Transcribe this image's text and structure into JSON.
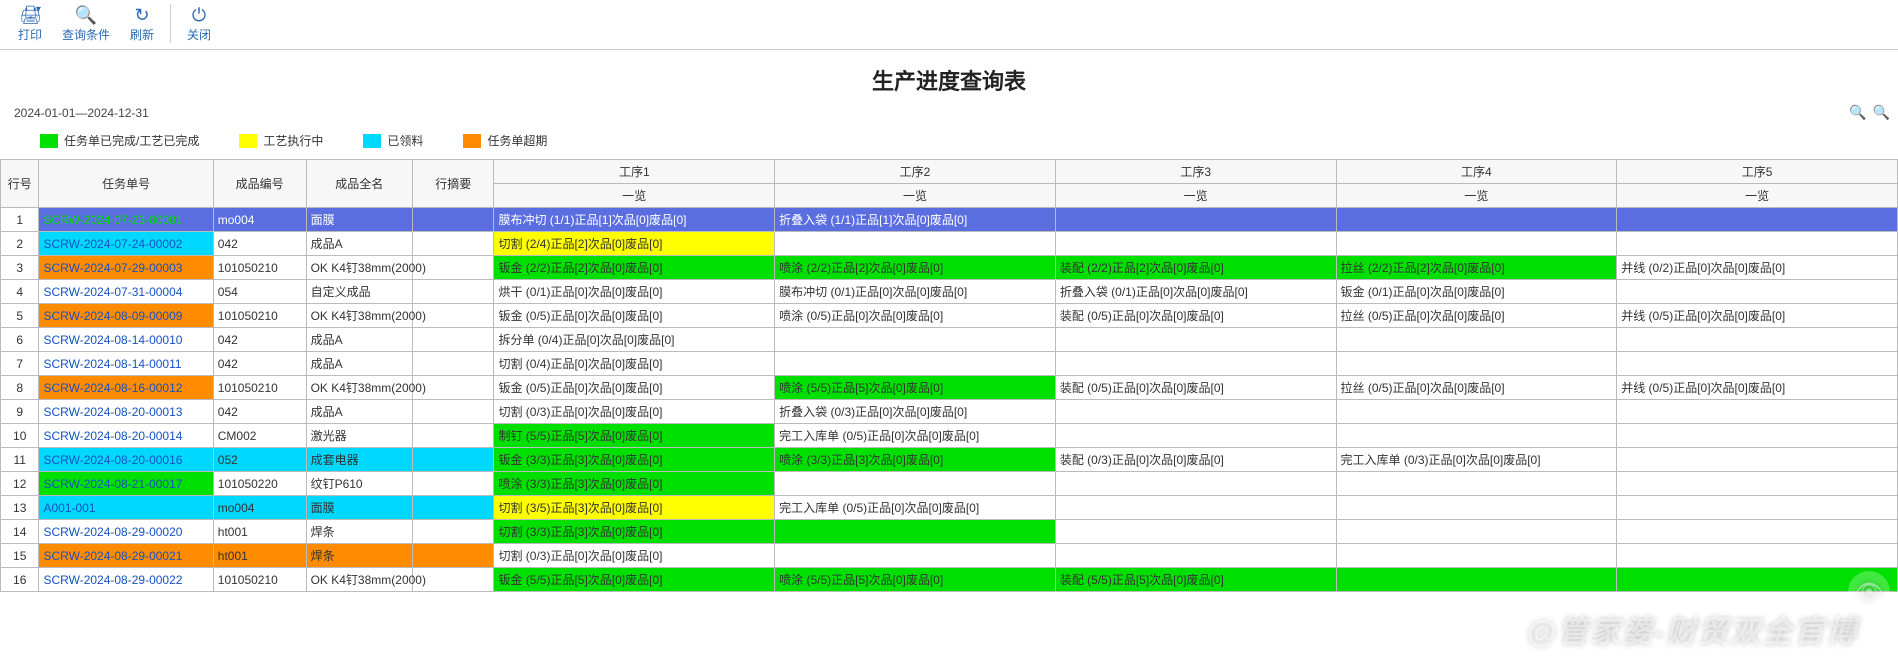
{
  "colors": {
    "green": "#00e000",
    "yellow": "#ffff00",
    "cyan": "#00d8ff",
    "orange": "#ff8c00",
    "blue_row": "#5a6ee0",
    "blue_row_fg": "#ffffff",
    "header_bg": "#f7f7f7",
    "link": "#1552c4"
  },
  "toolbar": [
    {
      "name": "print",
      "icon": "🖨",
      "label": "打印",
      "hasDropdown": true
    },
    {
      "name": "query",
      "icon": "🔍",
      "label": "查询条件"
    },
    {
      "name": "refresh",
      "icon": "↻",
      "label": "刷新"
    },
    {
      "sep": true
    },
    {
      "name": "close",
      "icon": "⏻",
      "label": "关闭"
    }
  ],
  "title": "生产进度查询表",
  "date_range": "2024-01-01—2024-12-31",
  "zoom_icons": [
    "🔍",
    "🔍"
  ],
  "legend": [
    {
      "color": "#00e000",
      "label": "任务单已完成/工艺已完成"
    },
    {
      "color": "#ffff00",
      "label": "工艺执行中"
    },
    {
      "color": "#00d8ff",
      "label": "已领料"
    },
    {
      "color": "#ff8c00",
      "label": "任务单超期"
    }
  ],
  "columns": {
    "rownum": "行号",
    "task": "任务单号",
    "pcode": "成品编号",
    "pname": "成品全名",
    "summary": "行摘要",
    "proc_groups": [
      "工序1",
      "工序2",
      "工序3",
      "工序4",
      "工序5"
    ],
    "proc_sub": "一览"
  },
  "rows": [
    {
      "n": 1,
      "task": "SCRW-2024-07-23-00001",
      "task_bg": "#5a6ee0",
      "task_fg": "#00e000",
      "pcode": "mo004",
      "pcode_bg": "#5a6ee0",
      "pcode_fg": "#ffffff",
      "pname": "面膜",
      "pname_bg": "#5a6ee0",
      "pname_fg": "#ffffff",
      "summary_bg": "#5a6ee0",
      "procs": [
        {
          "text": "膜布冲切 (1/1)正品[1]次品[0]废品[0]",
          "bg": "#5a6ee0",
          "fg": "#ffffff"
        },
        {
          "text": "折叠入袋 (1/1)正品[1]次品[0]废品[0]",
          "bg": "#5a6ee0",
          "fg": "#ffffff"
        },
        {
          "text": "",
          "bg": "#5a6ee0"
        },
        {
          "text": "",
          "bg": "#5a6ee0"
        },
        {
          "text": "",
          "bg": "#5a6ee0"
        }
      ]
    },
    {
      "n": 2,
      "task": "SCRW-2024-07-24-00002",
      "task_bg": "#00d8ff",
      "task_fg": "#1552c4",
      "pcode": "042",
      "pname": "成品A",
      "procs": [
        {
          "text": "切割 (2/4)正品[2]次品[0]废品[0]",
          "bg": "#ffff00"
        },
        {
          "text": ""
        },
        {
          "text": ""
        },
        {
          "text": ""
        },
        {
          "text": ""
        }
      ]
    },
    {
      "n": 3,
      "task": "SCRW-2024-07-29-00003",
      "task_bg": "#ff8c00",
      "task_fg": "#1552c4",
      "pcode": "101050210",
      "pname": "OK K4钉38mm(2000)",
      "procs": [
        {
          "text": "钣金 (2/2)正品[2]次品[0]废品[0]",
          "bg": "#00e000"
        },
        {
          "text": "喷涂 (2/2)正品[2]次品[0]废品[0]",
          "bg": "#00e000"
        },
        {
          "text": "装配 (2/2)正品[2]次品[0]废品[0]",
          "bg": "#00e000"
        },
        {
          "text": "拉丝 (2/2)正品[2]次品[0]废品[0]",
          "bg": "#00e000"
        },
        {
          "text": "并线 (0/2)正品[0]次品[0]废品[0]"
        }
      ]
    },
    {
      "n": 4,
      "task": "SCRW-2024-07-31-00004",
      "task_fg": "#1552c4",
      "pcode": "054",
      "pname": "自定义成品",
      "procs": [
        {
          "text": "烘干 (0/1)正品[0]次品[0]废品[0]"
        },
        {
          "text": "膜布冲切 (0/1)正品[0]次品[0]废品[0]"
        },
        {
          "text": "折叠入袋 (0/1)正品[0]次品[0]废品[0]"
        },
        {
          "text": "钣金 (0/1)正品[0]次品[0]废品[0]"
        },
        {
          "text": ""
        }
      ]
    },
    {
      "n": 5,
      "task": "SCRW-2024-08-09-00009",
      "task_bg": "#ff8c00",
      "task_fg": "#1552c4",
      "pcode": "101050210",
      "pname": "OK K4钉38mm(2000)",
      "procs": [
        {
          "text": "钣金 (0/5)正品[0]次品[0]废品[0]"
        },
        {
          "text": "喷涂 (0/5)正品[0]次品[0]废品[0]"
        },
        {
          "text": "装配 (0/5)正品[0]次品[0]废品[0]"
        },
        {
          "text": "拉丝 (0/5)正品[0]次品[0]废品[0]"
        },
        {
          "text": "并线 (0/5)正品[0]次品[0]废品[0]"
        }
      ]
    },
    {
      "n": 6,
      "task": "SCRW-2024-08-14-00010",
      "task_fg": "#1552c4",
      "pcode": "042",
      "pname": "成品A",
      "procs": [
        {
          "text": "拆分单 (0/4)正品[0]次品[0]废品[0]"
        },
        {
          "text": ""
        },
        {
          "text": ""
        },
        {
          "text": ""
        },
        {
          "text": ""
        }
      ]
    },
    {
      "n": 7,
      "task": "SCRW-2024-08-14-00011",
      "task_fg": "#1552c4",
      "pcode": "042",
      "pname": "成品A",
      "procs": [
        {
          "text": "切割 (0/4)正品[0]次品[0]废品[0]"
        },
        {
          "text": ""
        },
        {
          "text": ""
        },
        {
          "text": ""
        },
        {
          "text": ""
        }
      ]
    },
    {
      "n": 8,
      "task": "SCRW-2024-08-16-00012",
      "task_bg": "#ff8c00",
      "task_fg": "#1552c4",
      "pcode": "101050210",
      "pname": "OK K4钉38mm(2000)",
      "procs": [
        {
          "text": "钣金 (0/5)正品[0]次品[0]废品[0]"
        },
        {
          "text": "喷涂 (5/5)正品[5]次品[0]废品[0]",
          "bg": "#00e000"
        },
        {
          "text": "装配 (0/5)正品[0]次品[0]废品[0]"
        },
        {
          "text": "拉丝 (0/5)正品[0]次品[0]废品[0]"
        },
        {
          "text": "并线 (0/5)正品[0]次品[0]废品[0]"
        }
      ]
    },
    {
      "n": 9,
      "task": "SCRW-2024-08-20-00013",
      "task_fg": "#1552c4",
      "pcode": "042",
      "pname": "成品A",
      "procs": [
        {
          "text": "切割 (0/3)正品[0]次品[0]废品[0]"
        },
        {
          "text": "折叠入袋 (0/3)正品[0]次品[0]废品[0]"
        },
        {
          "text": ""
        },
        {
          "text": ""
        },
        {
          "text": ""
        }
      ]
    },
    {
      "n": 10,
      "task": "SCRW-2024-08-20-00014",
      "task_fg": "#1552c4",
      "pcode": "CM002",
      "pname": "激光器",
      "procs": [
        {
          "text": "制钉 (5/5)正品[5]次品[0]废品[0]",
          "bg": "#00e000"
        },
        {
          "text": "完工入库单 (0/5)正品[0]次品[0]废品[0]"
        },
        {
          "text": ""
        },
        {
          "text": ""
        },
        {
          "text": ""
        }
      ]
    },
    {
      "n": 11,
      "task": "SCRW-2024-08-20-00016",
      "task_bg": "#00d8ff",
      "task_fg": "#1552c4",
      "pcode": "052",
      "pcode_bg": "#00d8ff",
      "pname": "成套电器",
      "pname_bg": "#00d8ff",
      "summary_bg": "#00d8ff",
      "procs": [
        {
          "text": "钣金 (3/3)正品[3]次品[0]废品[0]",
          "bg": "#00e000"
        },
        {
          "text": "喷涂 (3/3)正品[3]次品[0]废品[0]",
          "bg": "#00e000"
        },
        {
          "text": "装配 (0/3)正品[0]次品[0]废品[0]"
        },
        {
          "text": "完工入库单 (0/3)正品[0]次品[0]废品[0]"
        },
        {
          "text": ""
        }
      ]
    },
    {
      "n": 12,
      "task": "SCRW-2024-08-21-00017",
      "task_bg": "#00e000",
      "task_fg": "#1552c4",
      "pcode": "101050220",
      "pname": "纹钉P610",
      "procs": [
        {
          "text": "喷涂 (3/3)正品[3]次品[0]废品[0]",
          "bg": "#00e000"
        },
        {
          "text": ""
        },
        {
          "text": ""
        },
        {
          "text": ""
        },
        {
          "text": ""
        }
      ]
    },
    {
      "n": 13,
      "task": "A001-001",
      "task_bg": "#00d8ff",
      "task_fg": "#1552c4",
      "pcode": "mo004",
      "pcode_bg": "#00d8ff",
      "pname": "面膜",
      "pname_bg": "#00d8ff",
      "summary_bg": "#00d8ff",
      "procs": [
        {
          "text": "切割 (3/5)正品[3]次品[0]废品[0]",
          "bg": "#ffff00"
        },
        {
          "text": "完工入库单 (0/5)正品[0]次品[0]废品[0]"
        },
        {
          "text": ""
        },
        {
          "text": ""
        },
        {
          "text": ""
        }
      ]
    },
    {
      "n": 14,
      "task": "SCRW-2024-08-29-00020",
      "task_fg": "#1552c4",
      "pcode": "ht001",
      "pname": "焊条",
      "procs": [
        {
          "text": "切割 (3/3)正品[3]次品[0]废品[0]",
          "bg": "#00e000"
        },
        {
          "text": "",
          "bg": "#00e000"
        },
        {
          "text": ""
        },
        {
          "text": ""
        },
        {
          "text": ""
        }
      ]
    },
    {
      "n": 15,
      "task": "SCRW-2024-08-29-00021",
      "task_bg": "#ff8c00",
      "task_fg": "#1552c4",
      "pcode": "ht001",
      "pcode_bg": "#ff8c00",
      "pname": "焊条",
      "pname_bg": "#ff8c00",
      "summary_bg": "#ff8c00",
      "procs": [
        {
          "text": "切割 (0/3)正品[0]次品[0]废品[0]"
        },
        {
          "text": ""
        },
        {
          "text": ""
        },
        {
          "text": ""
        },
        {
          "text": ""
        }
      ]
    },
    {
      "n": 16,
      "task": "SCRW-2024-08-29-00022",
      "task_fg": "#1552c4",
      "pcode": "101050210",
      "pname": "OK K4钉38mm(2000)",
      "procs": [
        {
          "text": "钣金 (5/5)正品[5]次品[0]废品[0]",
          "bg": "#00e000"
        },
        {
          "text": "喷涂 (5/5)正品[5]次品[0]废品[0]",
          "bg": "#00e000"
        },
        {
          "text": "装配 (5/5)正品[5]次品[0]废品[0]",
          "bg": "#00e000"
        },
        {
          "text": "",
          "bg": "#00e000"
        },
        {
          "text": "",
          "bg": "#00e000"
        }
      ]
    }
  ],
  "watermark": "@管家婆-财贸双全官博"
}
